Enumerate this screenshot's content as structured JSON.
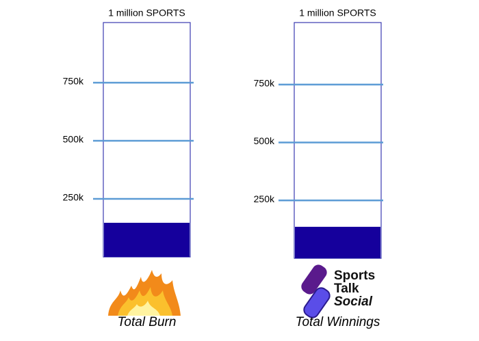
{
  "chart_data": [
    {
      "type": "gauge",
      "title": "1 million SPORTS",
      "xlabel": "Total Burn",
      "values": [
        147000
      ],
      "color": "#15009c",
      "ylim": [
        0,
        1000000
      ],
      "yticks": [
        {
          "value": 250000,
          "label": "250k"
        },
        {
          "value": 500000,
          "label": "500k"
        },
        {
          "value": 750000,
          "label": "750k"
        }
      ],
      "grid": true
    },
    {
      "type": "gauge",
      "title": "1 million SPORTS",
      "xlabel": "Total Winnings",
      "values": [
        136000
      ],
      "color": "#15009c",
      "ylim": [
        0,
        1000000
      ],
      "yticks": [
        {
          "value": 250000,
          "label": "250k"
        },
        {
          "value": 500000,
          "label": "500k"
        },
        {
          "value": 750000,
          "label": "750k"
        }
      ],
      "grid": true,
      "logo_text": [
        "Sports",
        "Talk",
        "Social"
      ]
    }
  ]
}
